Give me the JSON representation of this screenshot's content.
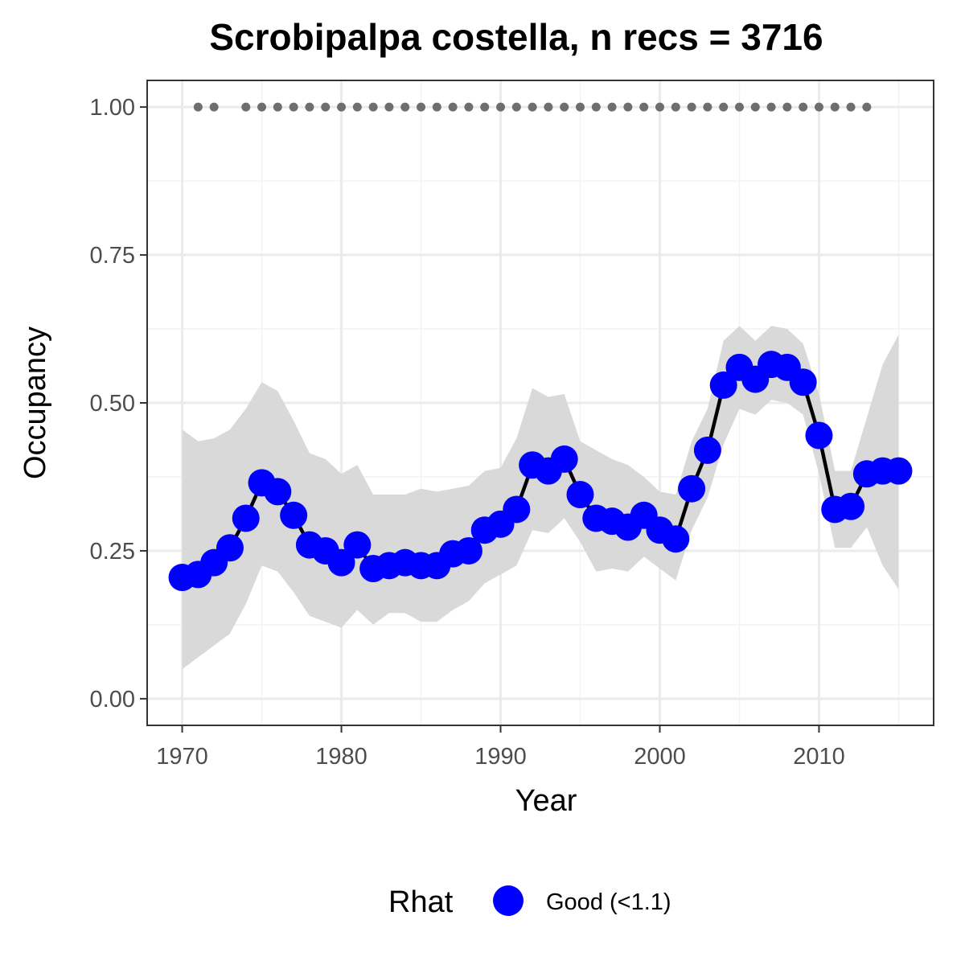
{
  "chart_data": {
    "type": "line",
    "title": "Scrobipalpa costella, n recs = 3716",
    "xlabel": "Year",
    "ylabel": "Occupancy",
    "xlim": [
      1967.8,
      2017.2
    ],
    "ylim": [
      -0.045,
      1.045
    ],
    "x_ticks": [
      1970,
      1980,
      1990,
      2000,
      2010
    ],
    "x_tick_labels": [
      "1970",
      "1980",
      "1990",
      "2000",
      "2010"
    ],
    "y_ticks": [
      0,
      0.25,
      0.5,
      0.75,
      1.0
    ],
    "y_tick_labels": [
      "0.00",
      "0.25",
      "0.50",
      "0.75",
      "1.00"
    ],
    "grid": true,
    "legend": {
      "title": "Rhat",
      "placement": "bottom",
      "entries": [
        {
          "label": "Good (<1.1)",
          "color": "#0000ff"
        }
      ]
    },
    "colors": {
      "point": "#0000ff",
      "line": "#000000",
      "ribbon": "#d9d9d9",
      "record_dots": "#6e6e6e"
    },
    "series": [
      {
        "x": [
          1970,
          1971,
          1972,
          1973,
          1974,
          1975,
          1976,
          1977,
          1978,
          1979,
          1980,
          1981,
          1982,
          1983,
          1984,
          1985,
          1986,
          1987,
          1988,
          1989,
          1990,
          1991,
          1992,
          1993,
          1994,
          1995,
          1996,
          1997,
          1998,
          1999,
          2000,
          2001,
          2002,
          2003,
          2004,
          2005,
          2006,
          2007,
          2008,
          2009,
          2010,
          2011,
          2012,
          2013,
          2014,
          2015
        ],
        "values": [
          0.205,
          0.21,
          0.23,
          0.255,
          0.305,
          0.365,
          0.35,
          0.31,
          0.26,
          0.25,
          0.23,
          0.26,
          0.22,
          0.225,
          0.23,
          0.225,
          0.225,
          0.245,
          0.25,
          0.285,
          0.295,
          0.32,
          0.395,
          0.385,
          0.405,
          0.345,
          0.305,
          0.3,
          0.29,
          0.31,
          0.285,
          0.27,
          0.355,
          0.42,
          0.53,
          0.56,
          0.54,
          0.565,
          0.56,
          0.535,
          0.445,
          0.32,
          0.325,
          0.38,
          0.385,
          0.385
        ],
        "lower": [
          0.05,
          0.07,
          0.09,
          0.11,
          0.16,
          0.225,
          0.215,
          0.18,
          0.14,
          0.13,
          0.12,
          0.15,
          0.125,
          0.145,
          0.145,
          0.13,
          0.13,
          0.15,
          0.165,
          0.195,
          0.21,
          0.225,
          0.285,
          0.28,
          0.305,
          0.265,
          0.215,
          0.22,
          0.215,
          0.24,
          0.22,
          0.2,
          0.285,
          0.34,
          0.43,
          0.49,
          0.48,
          0.505,
          0.5,
          0.48,
          0.38,
          0.255,
          0.255,
          0.29,
          0.225,
          0.185
        ],
        "upper": [
          0.455,
          0.435,
          0.44,
          0.455,
          0.49,
          0.535,
          0.52,
          0.47,
          0.415,
          0.405,
          0.38,
          0.395,
          0.345,
          0.345,
          0.345,
          0.355,
          0.35,
          0.355,
          0.36,
          0.385,
          0.39,
          0.44,
          0.525,
          0.51,
          0.515,
          0.435,
          0.42,
          0.405,
          0.395,
          0.375,
          0.35,
          0.345,
          0.435,
          0.49,
          0.605,
          0.63,
          0.605,
          0.63,
          0.625,
          0.6,
          0.515,
          0.385,
          0.385,
          0.475,
          0.565,
          0.615
        ]
      }
    ],
    "record_years": [
      1971,
      1972,
      1974,
      1975,
      1976,
      1977,
      1978,
      1979,
      1980,
      1981,
      1982,
      1983,
      1984,
      1985,
      1986,
      1987,
      1988,
      1989,
      1990,
      1991,
      1992,
      1993,
      1994,
      1995,
      1996,
      1997,
      1998,
      1999,
      2000,
      2001,
      2002,
      2003,
      2004,
      2005,
      2006,
      2007,
      2008,
      2009,
      2010,
      2011,
      2012,
      2013
    ],
    "record_level": 1.0
  }
}
